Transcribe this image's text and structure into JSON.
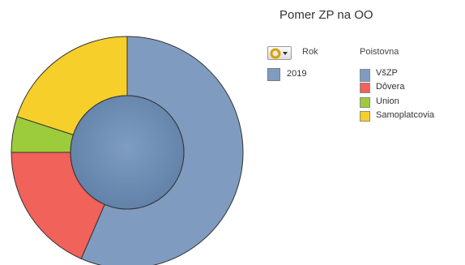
{
  "title": "Pomer ZP na OO",
  "dimension_legend": {
    "header": "Rok",
    "items": [
      {
        "label": "2019",
        "color": "#7f9cc0"
      }
    ]
  },
  "series_legend": {
    "header": "Poistovna",
    "items": [
      {
        "label": "VšZP",
        "color": "#7f9cc0"
      },
      {
        "label": "Dôvera",
        "color": "#f0625a"
      },
      {
        "label": "Union",
        "color": "#9ccc3c"
      },
      {
        "label": "Samoplatcovia",
        "color": "#f6cf2a"
      }
    ]
  },
  "cycle_icon": "cycle-group-icon",
  "chart_data": {
    "type": "pie",
    "subtype": "donut",
    "title": "Pomer ZP na OO",
    "inner_ring": {
      "category": "2019",
      "value": 100,
      "color": "#6b8bb3"
    },
    "outer_ring": {
      "categories": [
        "VšZP",
        "Dôvera",
        "Union",
        "Samoplatcovia"
      ],
      "values": [
        56.5,
        18.5,
        5.0,
        20.0
      ],
      "colors": [
        "#7f9cc0",
        "#f0625a",
        "#9ccc3c",
        "#f6cf2a"
      ]
    },
    "legend_position": "right"
  }
}
